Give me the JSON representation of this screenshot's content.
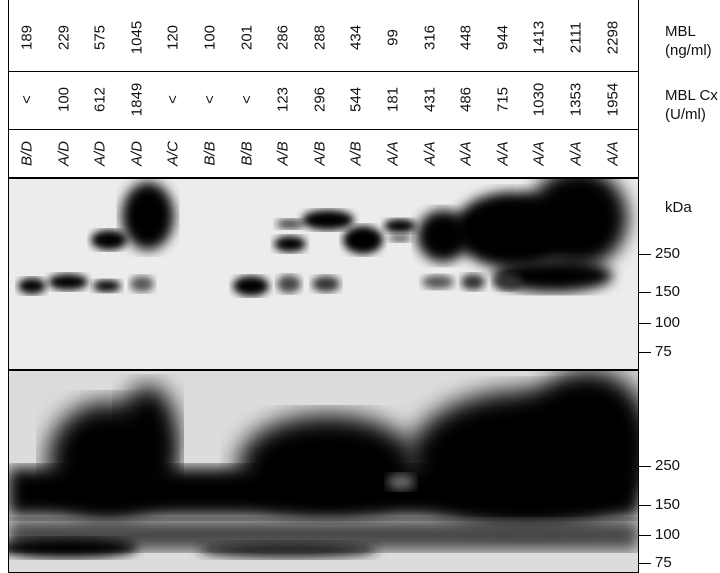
{
  "rows": {
    "mbl": {
      "label_line1": "MBL",
      "label_line2": "(ng/ml)",
      "values": [
        "189",
        "229",
        "575",
        "1045",
        "120",
        "100",
        "201",
        "286",
        "288",
        "434",
        "99",
        "316",
        "448",
        "944",
        "1413",
        "2111",
        "2298"
      ]
    },
    "mbl_cx": {
      "label_line1": "MBL Cx",
      "label_line2": "(U/ml)",
      "values": [
        "<",
        "100",
        "612",
        "1849",
        "<",
        "<",
        "<",
        "123",
        "296",
        "544",
        "181",
        "431",
        "486",
        "715",
        "1030",
        "1353",
        "1954"
      ]
    },
    "genotype": {
      "values": [
        "B/D",
        "A/D",
        "A/D",
        "A/D",
        "A/C",
        "B/B",
        "B/B",
        "A/B",
        "A/B",
        "A/B",
        "A/A",
        "A/A",
        "A/A",
        "A/A",
        "A/A",
        "A/A",
        "A/A"
      ]
    }
  },
  "top_blot": {
    "unit": "kDa",
    "markers": [
      "250",
      "150",
      "100",
      "75"
    ]
  },
  "bottom_blot": {
    "markers": [
      "250",
      "150",
      "100",
      "75"
    ]
  }
}
